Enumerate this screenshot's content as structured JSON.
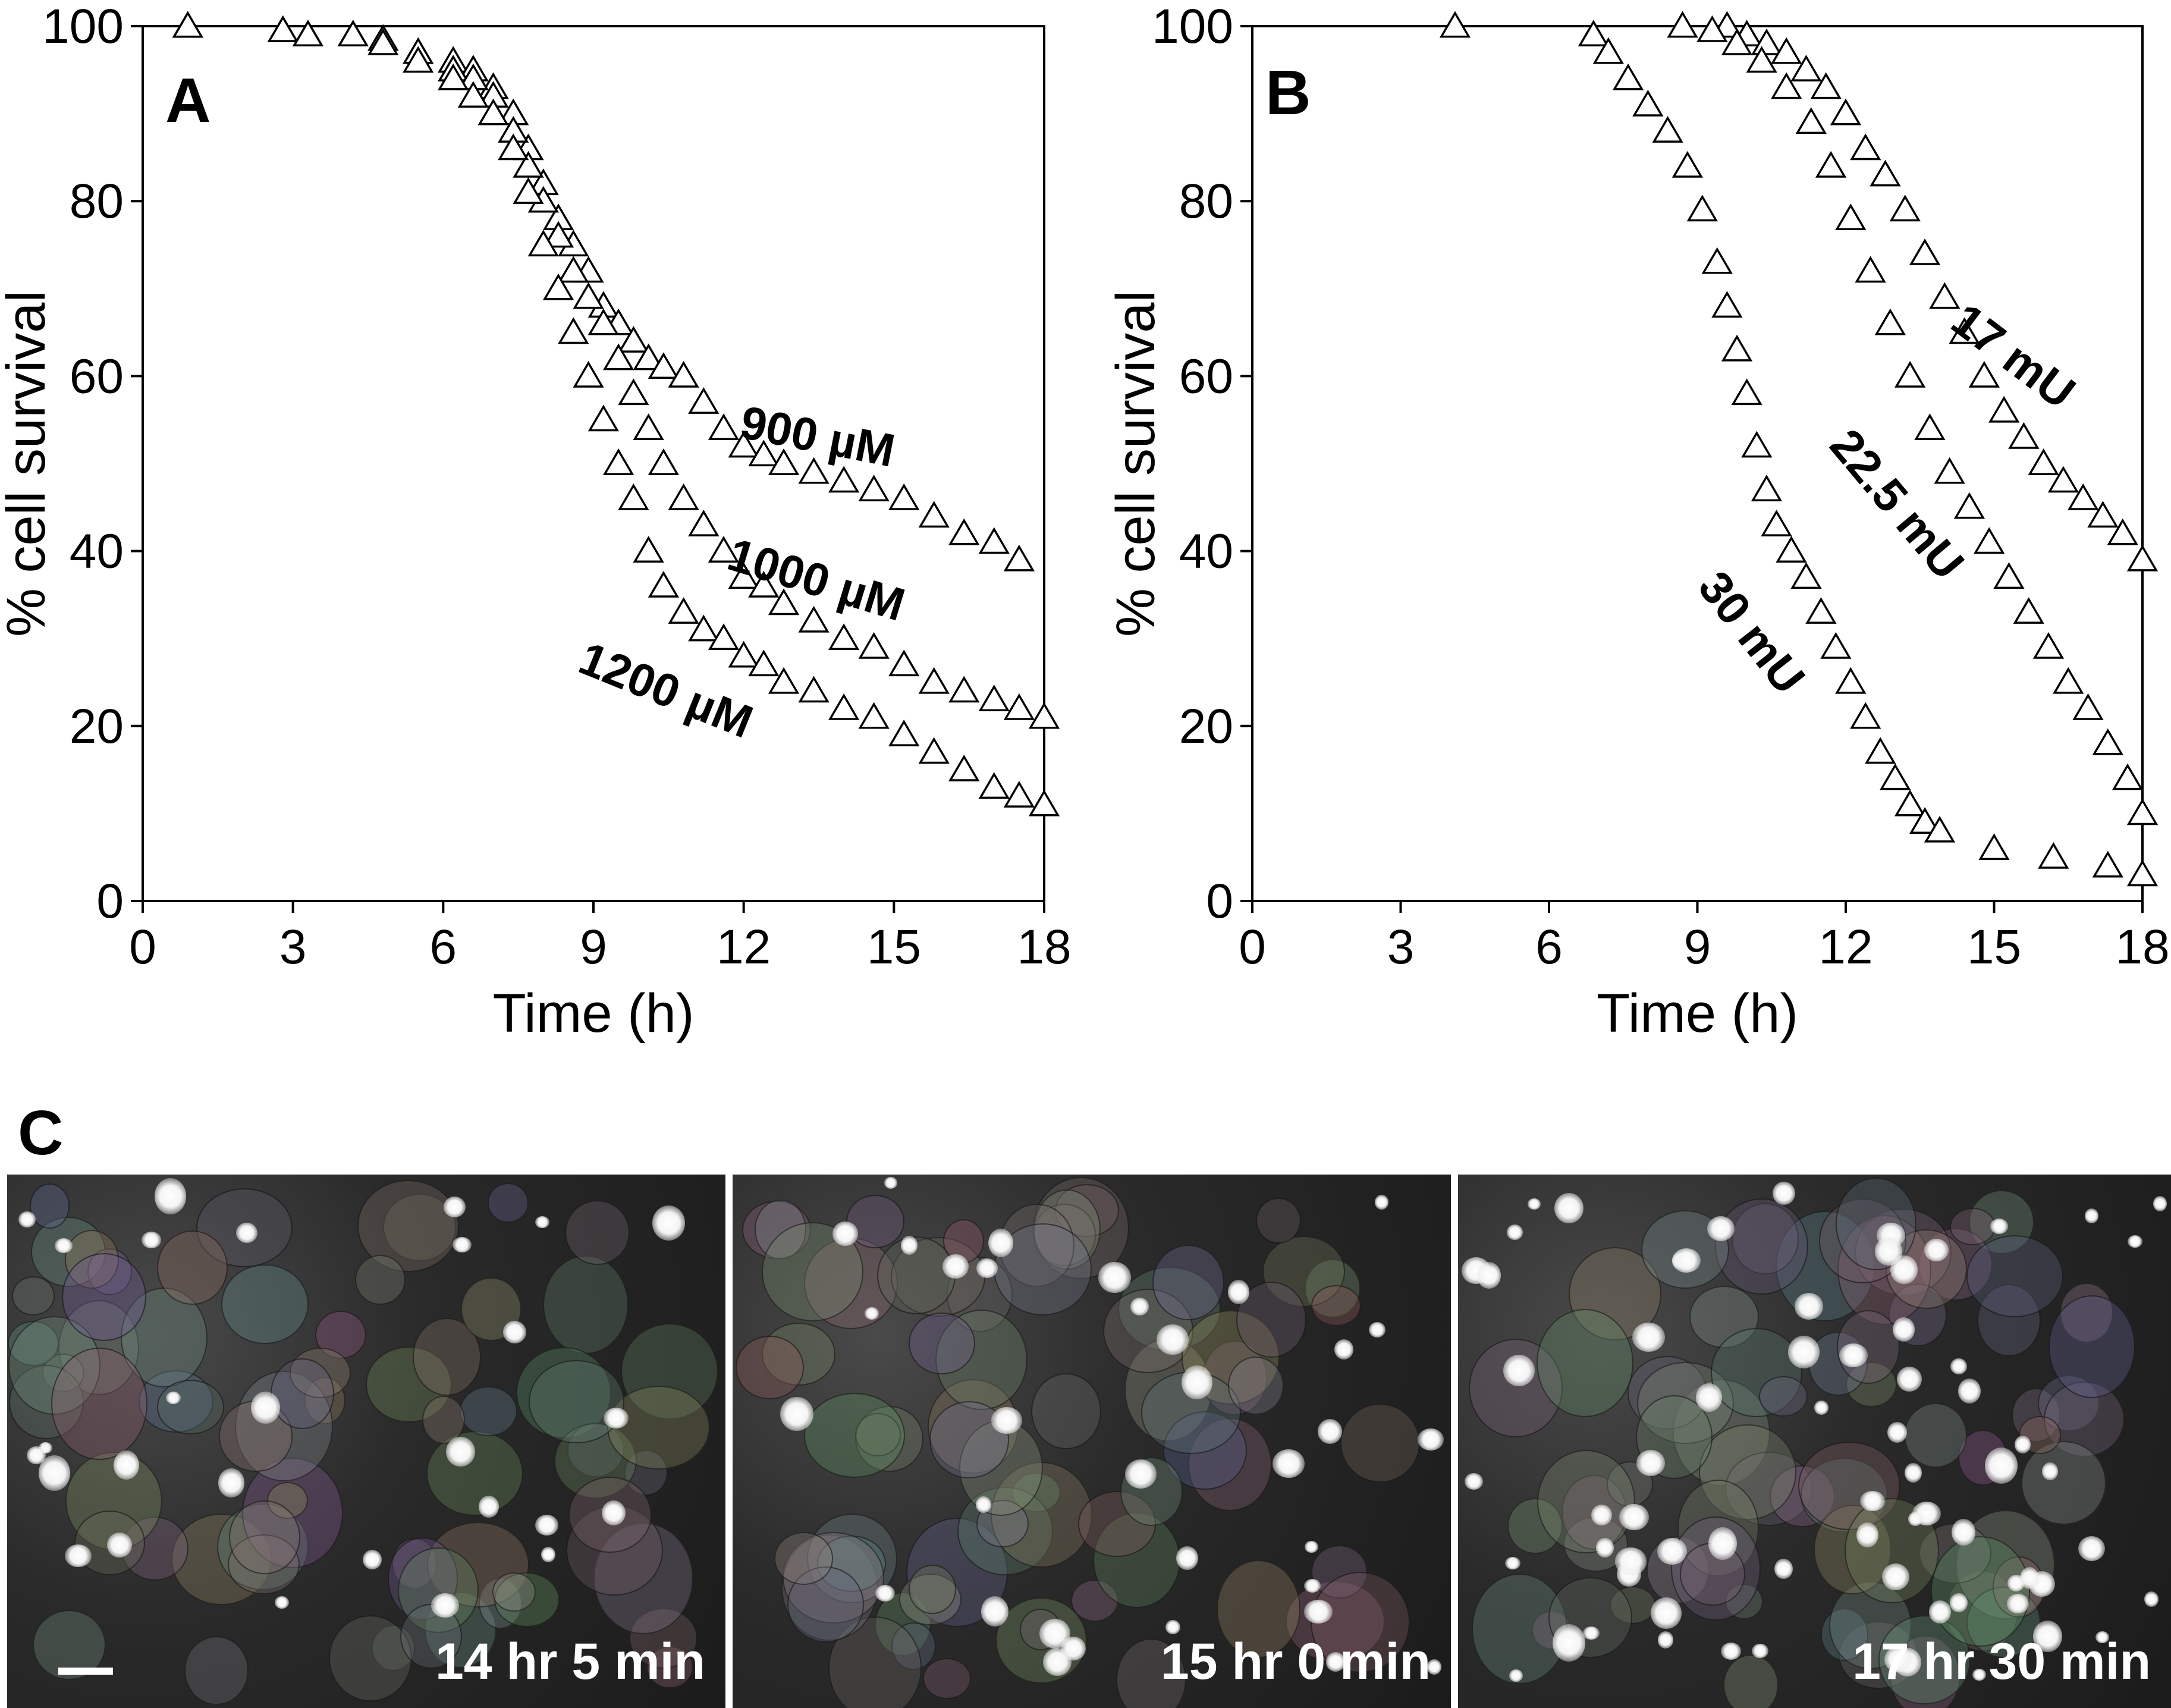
{
  "chart_data": [
    {
      "type": "scatter",
      "panel_letter": "A",
      "xlabel": "Time (h)",
      "ylabel": "% cell survival",
      "xlim": [
        0,
        18
      ],
      "ylim": [
        0,
        100
      ],
      "x_ticks": [
        "0",
        "3",
        "6",
        "9",
        "12",
        "15",
        "18"
      ],
      "y_ticks": [
        "0",
        "20",
        "40",
        "60",
        "80",
        "100"
      ],
      "marker": "open triangle",
      "series": [
        {
          "name": "900 µM",
          "x": [
            0.9,
            2.8,
            3.3,
            4.2,
            4.8,
            5.5,
            6.2,
            6.6,
            7.0,
            7.4,
            7.7,
            8.0,
            8.3,
            8.6,
            8.9,
            9.2,
            9.5,
            9.8,
            10.1,
            10.4,
            10.8,
            11.2,
            11.6,
            12.0,
            12.4,
            12.8,
            13.4,
            14.0,
            14.6,
            15.2,
            15.8,
            16.4,
            17.0,
            17.5
          ],
          "y": [
            100,
            99.5,
            99,
            99,
            98.5,
            97,
            96,
            95,
            93,
            90,
            86,
            82,
            78,
            75,
            72,
            68,
            66,
            64,
            62,
            61,
            60,
            57,
            54,
            52,
            51,
            50,
            49,
            48,
            47,
            46,
            44,
            42,
            41,
            39
          ]
        },
        {
          "name": "1000 µM",
          "x": [
            0.9,
            2.8,
            3.3,
            4.2,
            4.8,
            5.5,
            6.2,
            6.6,
            7.0,
            7.4,
            7.7,
            8.0,
            8.3,
            8.6,
            8.9,
            9.2,
            9.5,
            9.8,
            10.1,
            10.4,
            10.8,
            11.2,
            11.6,
            12.0,
            12.4,
            12.8,
            13.4,
            14.0,
            14.6,
            15.2,
            15.8,
            16.4,
            17.0,
            17.5,
            18.0
          ],
          "y": [
            100,
            99.5,
            99,
            99,
            98.5,
            97,
            95,
            94,
            92,
            88,
            84,
            80,
            76,
            72,
            69,
            66,
            62,
            58,
            54,
            50,
            46,
            43,
            40,
            37,
            36,
            34,
            32,
            30,
            29,
            27,
            25,
            24,
            23,
            22,
            21
          ]
        },
        {
          "name": "1200 µM",
          "x": [
            0.9,
            2.8,
            3.3,
            4.2,
            4.8,
            5.5,
            6.2,
            6.6,
            7.0,
            7.4,
            7.7,
            8.0,
            8.3,
            8.6,
            8.9,
            9.2,
            9.5,
            9.8,
            10.1,
            10.4,
            10.8,
            11.2,
            11.6,
            12.0,
            12.4,
            12.8,
            13.4,
            14.0,
            14.6,
            15.2,
            15.8,
            16.4,
            17.0,
            17.5,
            18.0
          ],
          "y": [
            100,
            99.5,
            99,
            99,
            98,
            96,
            94,
            92,
            90,
            86,
            81,
            75,
            70,
            65,
            60,
            55,
            50,
            46,
            40,
            36,
            33,
            31,
            30,
            28,
            27,
            25,
            24,
            22,
            21,
            19,
            17,
            15,
            13,
            12,
            11
          ]
        }
      ]
    },
    {
      "type": "scatter",
      "panel_letter": "B",
      "xlabel": "Time (h)",
      "ylabel": "% cell survival",
      "xlim": [
        0,
        18
      ],
      "ylim": [
        0,
        100
      ],
      "x_ticks": [
        "0",
        "3",
        "6",
        "9",
        "12",
        "15",
        "18"
      ],
      "y_ticks": [
        "0",
        "20",
        "40",
        "60",
        "80",
        "100"
      ],
      "marker": "open triangle",
      "series": [
        {
          "name": "17 mU",
          "x": [
            9.6,
            10.0,
            10.4,
            10.8,
            11.2,
            11.6,
            12.0,
            12.4,
            12.8,
            13.2,
            13.6,
            14.0,
            14.4,
            14.8,
            15.2,
            15.6,
            16.0,
            16.4,
            16.8,
            17.2,
            17.6,
            18.0
          ],
          "y": [
            100,
            99,
            98,
            97,
            95,
            93,
            90,
            86,
            83,
            79,
            74,
            69,
            65,
            60,
            56,
            53,
            50,
            48,
            46,
            44,
            42,
            39
          ]
        },
        {
          "name": "22.5 mU",
          "x": [
            8.7,
            9.3,
            9.8,
            10.3,
            10.8,
            11.3,
            11.7,
            12.1,
            12.5,
            12.9,
            13.3,
            13.7,
            14.1,
            14.5,
            14.9,
            15.3,
            15.7,
            16.1,
            16.5,
            16.9,
            17.3,
            17.7,
            18.0
          ],
          "y": [
            100,
            99.5,
            98,
            96,
            93,
            89,
            84,
            78,
            72,
            66,
            60,
            54,
            49,
            45,
            41,
            37,
            33,
            29,
            25,
            22,
            18,
            14,
            10
          ]
        },
        {
          "name": "30 mU",
          "x": [
            4.1,
            6.9,
            7.2,
            7.6,
            8.0,
            8.4,
            8.8,
            9.1,
            9.4,
            9.6,
            9.8,
            10.0,
            10.2,
            10.4,
            10.6,
            10.9,
            11.2,
            11.5,
            11.8,
            12.1,
            12.4,
            12.7,
            13.0,
            13.3,
            13.6,
            13.9,
            15.0,
            16.2,
            17.3,
            18.0
          ],
          "y": [
            100,
            99,
            97,
            94,
            91,
            88,
            84,
            79,
            73,
            68,
            63,
            58,
            52,
            47,
            43,
            40,
            37,
            33,
            29,
            25,
            21,
            17,
            14,
            11,
            9,
            8,
            6,
            5,
            4,
            3
          ]
        }
      ]
    }
  ],
  "panel_c": {
    "panel_letter": "C",
    "frames": [
      {
        "label": "14 hr 5 min"
      },
      {
        "label": "15 hr 0 min"
      },
      {
        "label": "17 hr 30 min"
      }
    ]
  }
}
